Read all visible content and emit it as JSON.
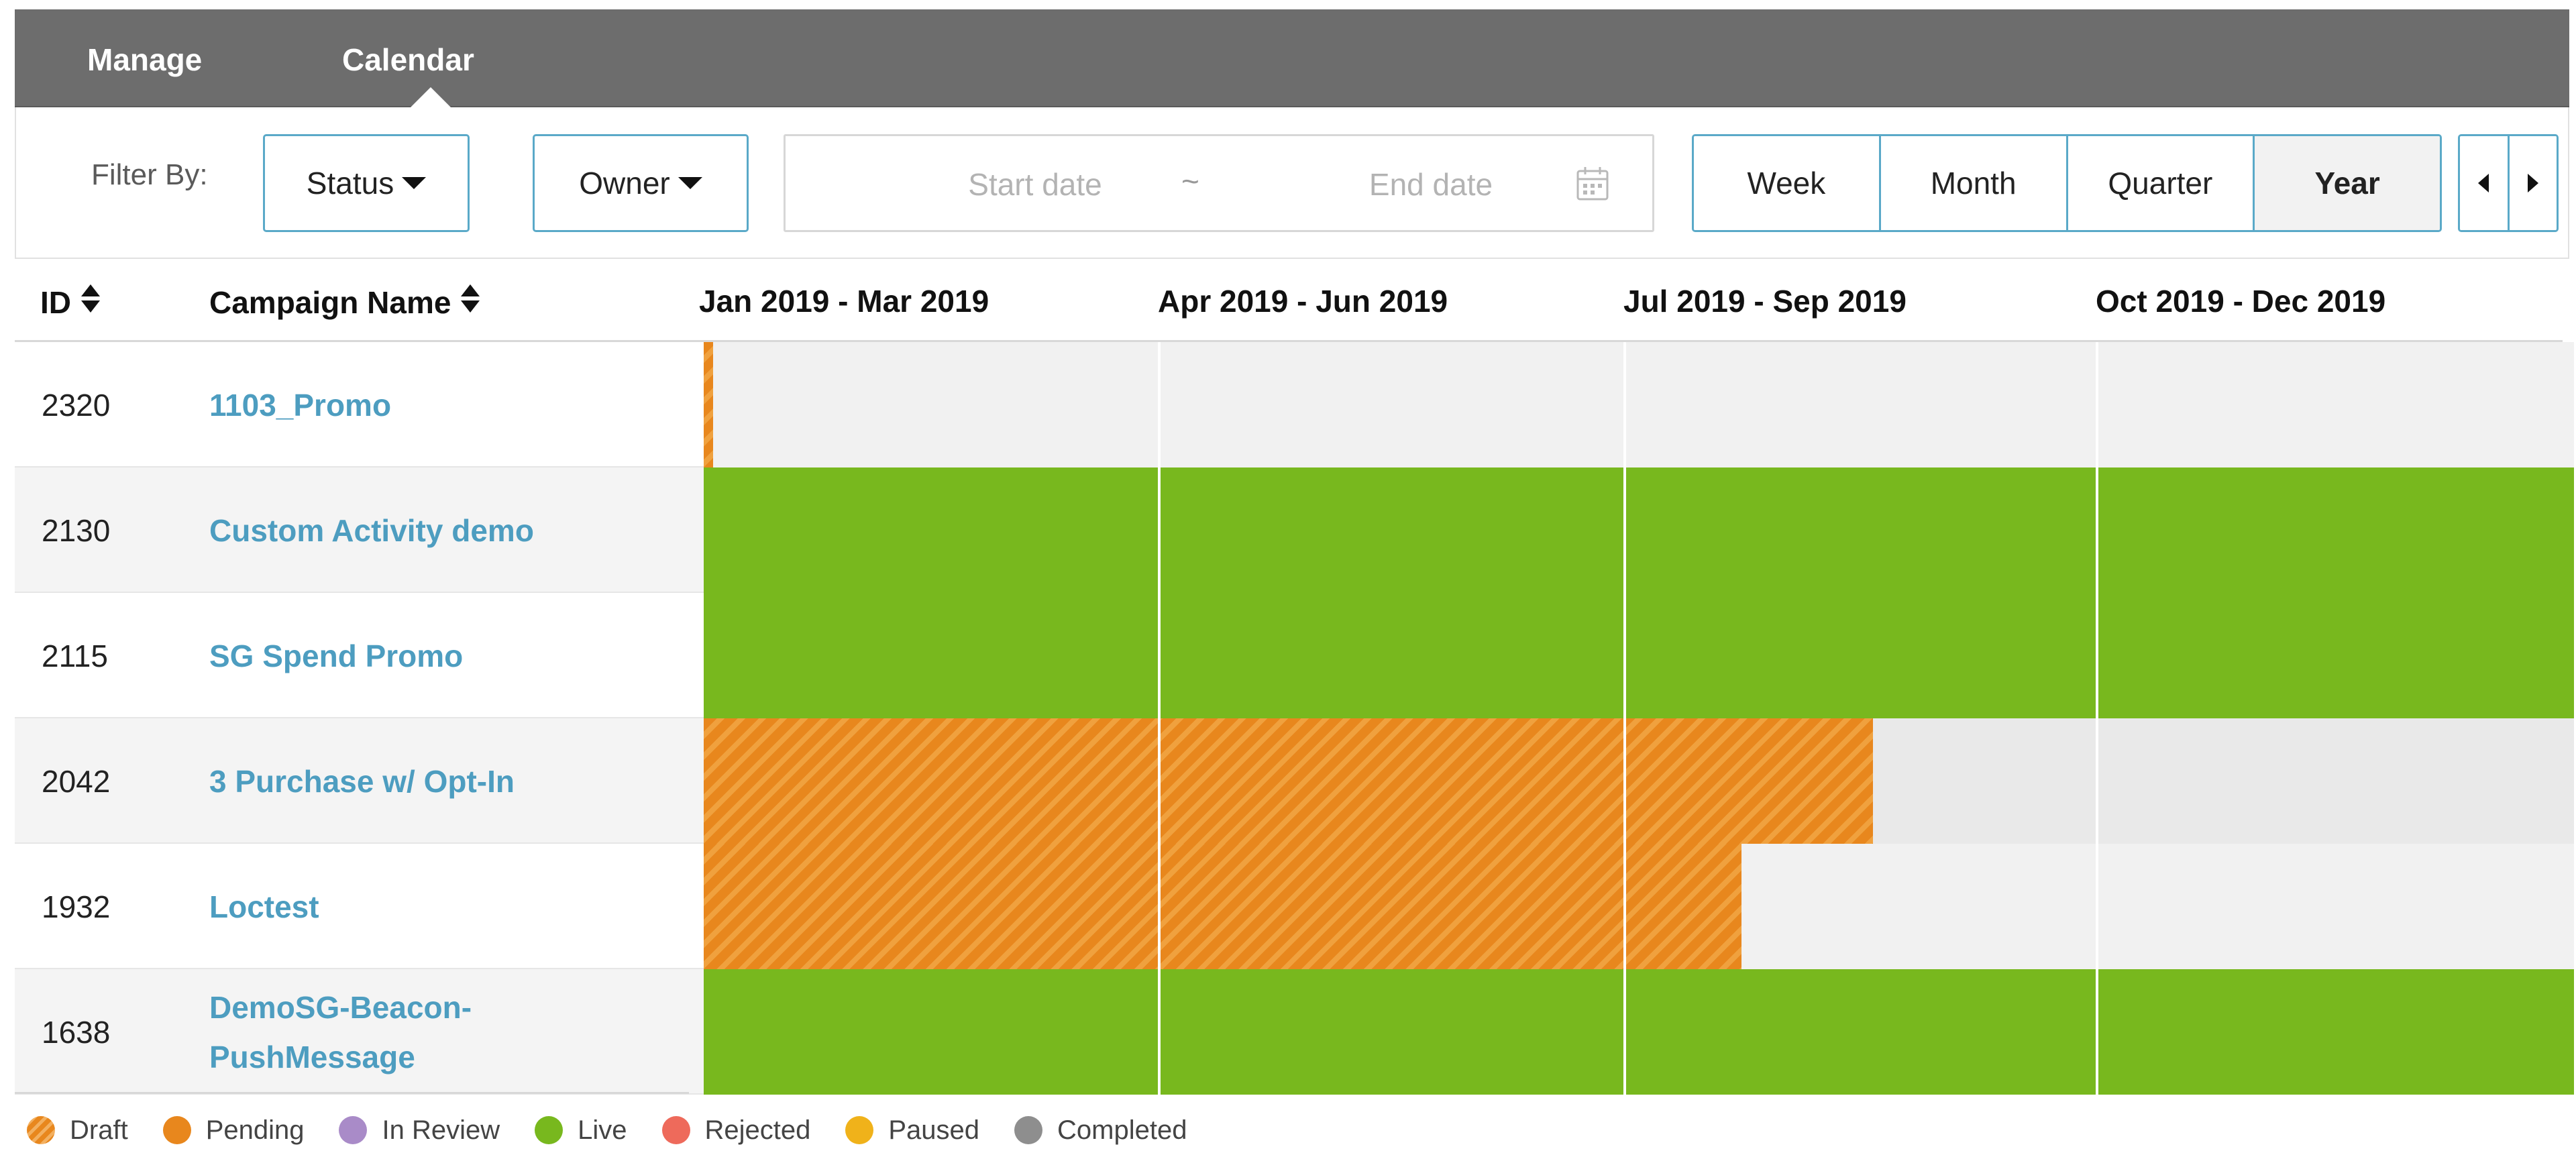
{
  "nav": {
    "tabs": [
      {
        "label": "Manage"
      },
      {
        "label": "Calendar",
        "active": true
      }
    ]
  },
  "filters": {
    "label": "Filter By:",
    "status_label": "Status",
    "owner_label": "Owner",
    "start_placeholder": "Start date",
    "separator": "~",
    "end_placeholder": "End date",
    "views": [
      "Week",
      "Month",
      "Quarter",
      "Year"
    ],
    "active_view": "Year"
  },
  "table": {
    "headers": {
      "id": "ID",
      "name": "Campaign Name",
      "quarters": [
        "Jan 2019 - Mar 2019",
        "Apr 2019 - Jun 2019",
        "Jul 2019 - Sep 2019",
        "Oct 2019 - Dec 2019"
      ]
    },
    "rows": [
      {
        "id": "2320",
        "name": "1103_Promo",
        "status": "draft",
        "progress": 0.005
      },
      {
        "id": "2130",
        "name": "Custom Activity demo",
        "status": "live",
        "progress": 1.0
      },
      {
        "id": "2115",
        "name": "SG Spend Promo",
        "status": "live",
        "progress": 1.0
      },
      {
        "id": "2042",
        "name": "3 Purchase w/ Opt-In",
        "status": "draft",
        "progress": 0.625
      },
      {
        "id": "1932",
        "name": "Loctest",
        "status": "draft",
        "progress": 0.555
      },
      {
        "id": "1638",
        "name": "DemoSG-Beacon-PushMessage",
        "name_lines": [
          "DemoSG-Beacon-",
          "PushMessage"
        ],
        "status": "live",
        "progress": 1.0
      }
    ]
  },
  "legend": [
    {
      "label": "Draft",
      "style": "striped",
      "color": "#e8871d"
    },
    {
      "label": "Pending",
      "color": "#e8871d"
    },
    {
      "label": "In Review",
      "color": "#a98bc8"
    },
    {
      "label": "Live",
      "color": "#78b81e"
    },
    {
      "label": "Rejected",
      "color": "#ee6a5b"
    },
    {
      "label": "Paused",
      "color": "#f0b21a"
    },
    {
      "label": "Completed",
      "color": "#8e8e8e"
    }
  ]
}
